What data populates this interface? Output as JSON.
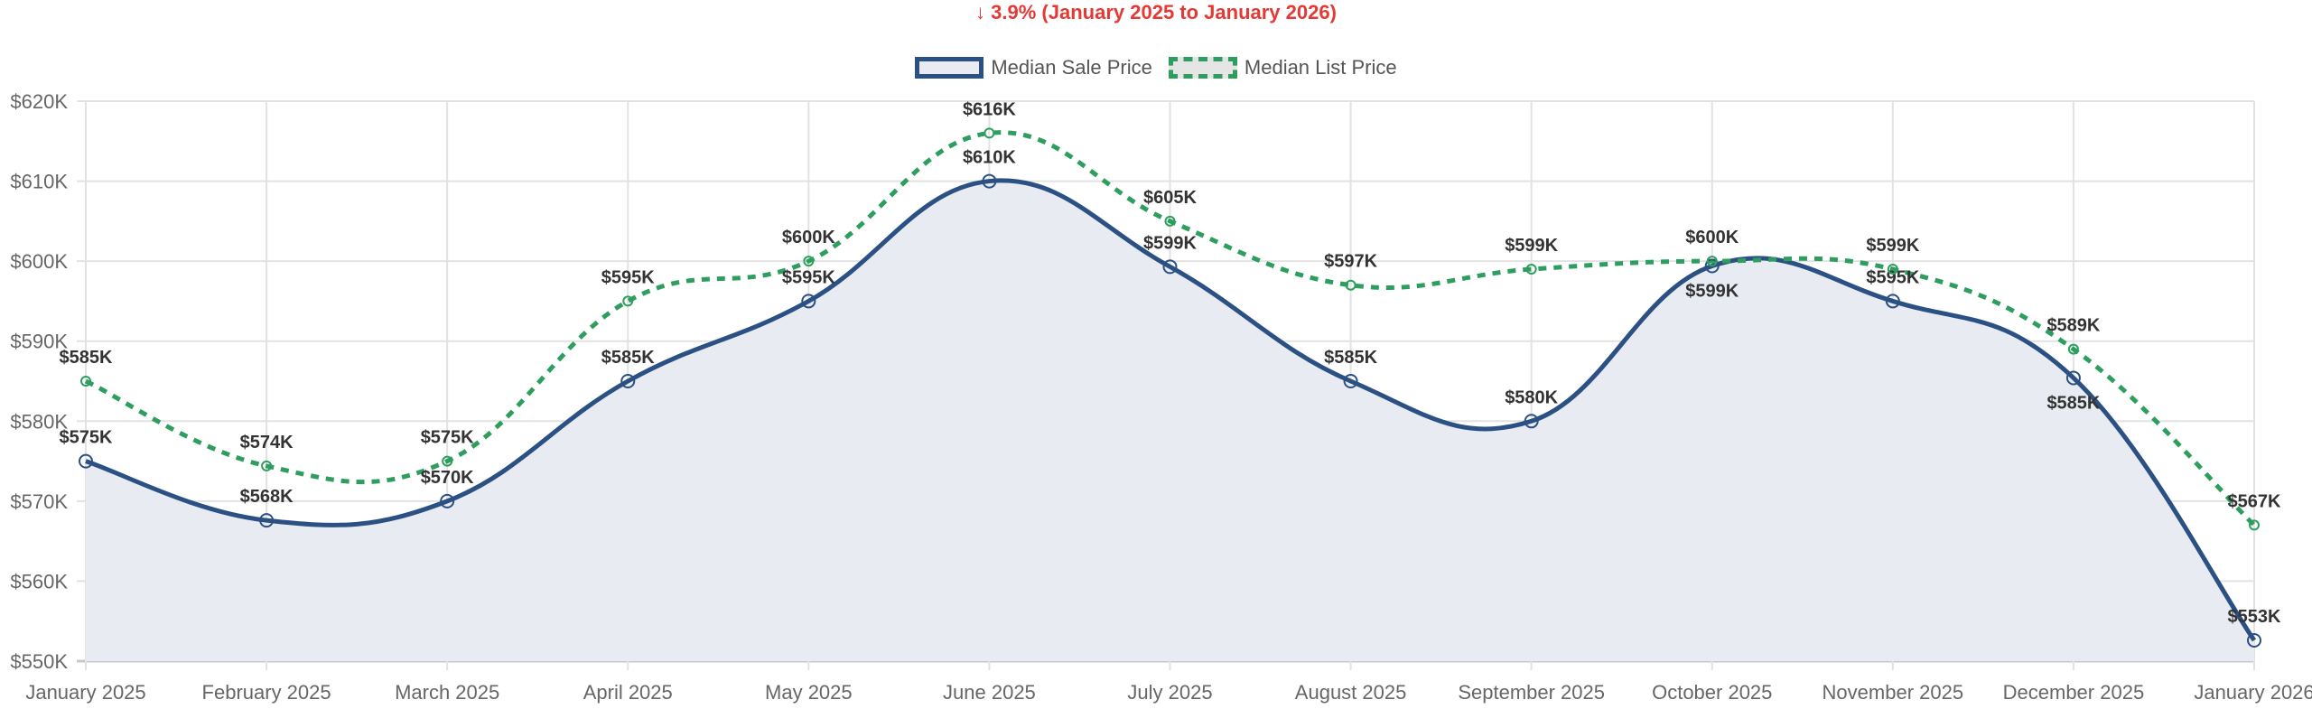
{
  "chart_data": {
    "type": "line",
    "title": "↓ 3.9% (January 2025 to January 2026)",
    "categories": [
      "January 2025",
      "February 2025",
      "March 2025",
      "April 2025",
      "May 2025",
      "June 2025",
      "July 2025",
      "August 2025",
      "September 2025",
      "October 2025",
      "November 2025",
      "December 2025",
      "January 2026"
    ],
    "ylim": [
      550,
      620
    ],
    "yticks": [
      550,
      560,
      570,
      580,
      590,
      600,
      610,
      620
    ],
    "ytick_labels": [
      "$550K",
      "$560K",
      "$570K",
      "$580K",
      "$590K",
      "$600K",
      "$610K",
      "$620K"
    ],
    "y_unit": "thousands USD",
    "grid": true,
    "legend_position": "top",
    "series": [
      {
        "name": "Median Sale Price",
        "color": "#2b5083",
        "fill": "#e8ebf1",
        "style": "solid",
        "values": [
          575,
          567.6,
          570,
          585,
          595,
          610,
          599.3,
          585,
          580,
          599.4,
          595,
          585.4,
          552.6
        ],
        "labels": [
          "$575K",
          "$568K",
          "$570K",
          "$585K",
          "$595K",
          "$610K",
          "$599K",
          "$585K",
          "$580K",
          "$599K",
          "$595K",
          "$585K",
          "$553K"
        ]
      },
      {
        "name": "Median List Price",
        "color": "#2e9e5e",
        "fill": "#e5e5e5",
        "style": "dashed",
        "values": [
          585,
          574.4,
          575,
          595,
          600,
          616,
          605,
          597,
          599,
          600,
          599,
          589,
          567
        ],
        "labels": [
          "$585K",
          "$574K",
          "$575K",
          "$595K",
          "$600K",
          "$616K",
          "$605K",
          "$597K",
          "$599K",
          "$600K",
          "$599K",
          "$589K",
          "$567K"
        ]
      }
    ]
  }
}
